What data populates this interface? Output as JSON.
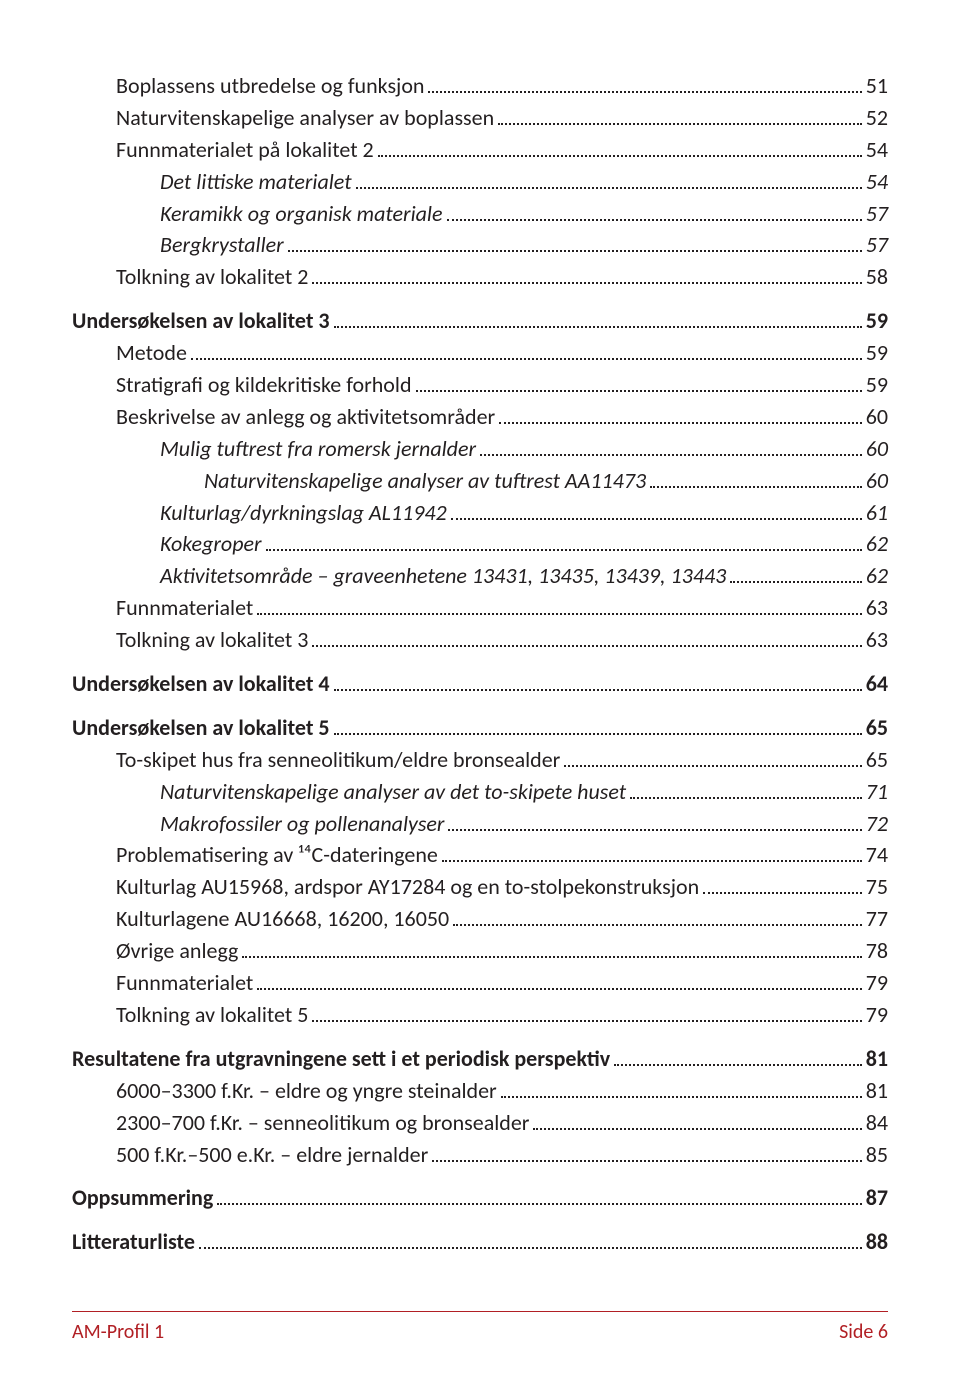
{
  "colors": {
    "text": "#231f20",
    "accent": "#b11f24",
    "background": "#ffffff"
  },
  "typography": {
    "body_fontsize_pt": 16,
    "footer_fontsize_pt": 14,
    "font_family": "Gill Sans"
  },
  "toc": {
    "entries": [
      {
        "level": 1,
        "label": "Boplassens utbredelse og funksjon",
        "page": "51"
      },
      {
        "level": 1,
        "label": "Naturvitenskapelige analyser av boplassen",
        "page": "52"
      },
      {
        "level": 1,
        "label": "Funnmaterialet på lokalitet 2",
        "page": "54"
      },
      {
        "level": 2,
        "label": "Det littiske materialet",
        "page": "54"
      },
      {
        "level": 2,
        "label": "Keramikk og organisk materiale",
        "page": "57"
      },
      {
        "level": 2,
        "label": "Bergkrystaller",
        "page": "57"
      },
      {
        "level": 1,
        "label": "Tolkning av lokalitet 2",
        "page": "58"
      },
      {
        "gap": true
      },
      {
        "level": 0,
        "label": "Undersøkelsen av lokalitet 3",
        "page": "59"
      },
      {
        "level": 1,
        "label": "Metode",
        "page": "59"
      },
      {
        "level": 1,
        "label": "Stratigrafi og kildekritiske forhold",
        "page": "59"
      },
      {
        "level": 1,
        "label": "Beskrivelse av anlegg og aktivitetsområder",
        "page": "60"
      },
      {
        "level": 2,
        "label": "Mulig tuftrest fra romersk jernalder",
        "page": "60"
      },
      {
        "level": 3,
        "label": "Naturvitenskapelige analyser av tuftrest AA11473",
        "page": "60"
      },
      {
        "level": 2,
        "label": "Kulturlag/dyrkningslag AL11942",
        "page": "61"
      },
      {
        "level": 2,
        "label": "Kokegroper",
        "page": "62"
      },
      {
        "level": 2,
        "label": "Aktivitetsområde – graveenhetene 13431, 13435, 13439, 13443",
        "page": "62"
      },
      {
        "level": 1,
        "label": "Funnmaterialet",
        "page": "63"
      },
      {
        "level": 1,
        "label": "Tolkning av lokalitet 3",
        "page": "63"
      },
      {
        "gap": true
      },
      {
        "level": 0,
        "label": "Undersøkelsen av lokalitet 4",
        "page": "64"
      },
      {
        "gap": true
      },
      {
        "level": 0,
        "label": "Undersøkelsen av lokalitet 5",
        "page": "65"
      },
      {
        "level": 1,
        "label": "To-skipet hus fra senneolitikum/eldre bronsealder",
        "page": "65"
      },
      {
        "level": 2,
        "label": "Naturvitenskapelige analyser av det to-skipete huset",
        "page": "71"
      },
      {
        "level": 2,
        "label": "Makrofossiler og pollenanalyser",
        "page": "72"
      },
      {
        "level": 1,
        "label": "Problematisering av ¹⁴C-dateringene",
        "page": "74"
      },
      {
        "level": 1,
        "label": "Kulturlag AU15968, ardspor AY17284 og en to-stolpekonstruksjon",
        "page": "75"
      },
      {
        "level": 1,
        "label": "Kulturlagene AU16668, 16200, 16050",
        "page": "77"
      },
      {
        "level": 1,
        "label": "Øvrige anlegg",
        "page": "78"
      },
      {
        "level": 1,
        "label": "Funnmaterialet",
        "page": "79"
      },
      {
        "level": 1,
        "label": "Tolkning av lokalitet 5",
        "page": "79"
      },
      {
        "gap": true
      },
      {
        "level": 0,
        "label": "Resultatene fra utgravningene sett i et periodisk perspektiv",
        "page": "81"
      },
      {
        "level": 1,
        "label": "6000–3300 f.Kr. – eldre og yngre steinalder",
        "page": "81"
      },
      {
        "level": 1,
        "label": "2300–700 f.Kr. – senneolitikum og bronsealder",
        "page": "84"
      },
      {
        "level": 1,
        "label": "500 f.Kr.–500 e.Kr. – eldre jernalder",
        "page": "85"
      },
      {
        "gap": true
      },
      {
        "level": 0,
        "label": "Oppsummering",
        "page": "87"
      },
      {
        "gap": true
      },
      {
        "level": 0,
        "label": "Litteraturliste",
        "page": "88"
      }
    ]
  },
  "footer": {
    "left": "AM-Profil 1",
    "right": "Side 6"
  }
}
